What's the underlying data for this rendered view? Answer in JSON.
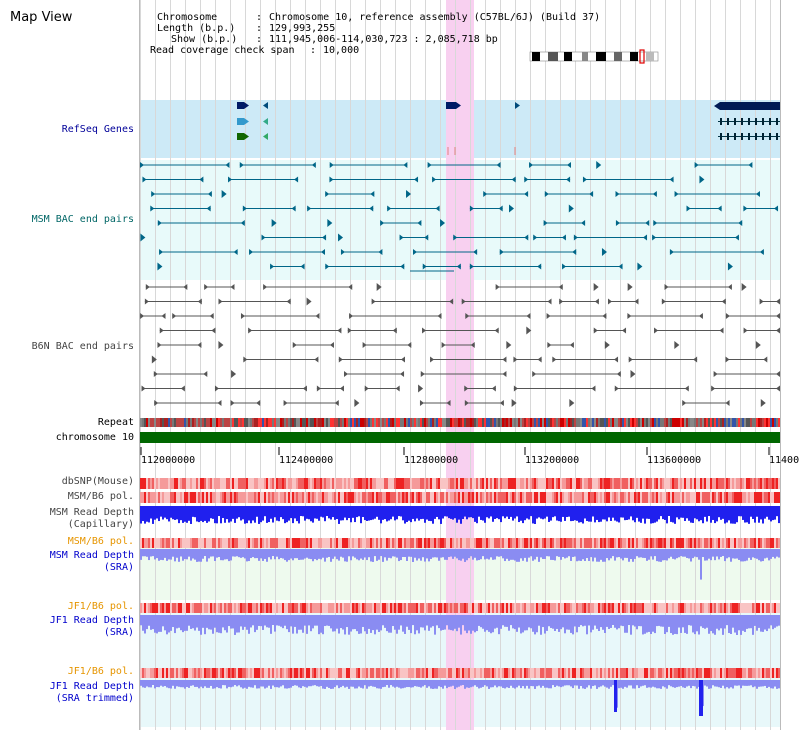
{
  "header": {
    "title": "Map View",
    "chromosome_key": "Chromosome",
    "chromosome_value": "Chromosome 10, reference assembly (C57BL/6J) (Build 37)",
    "length_key": "Length (b.p.)",
    "length_value": "129,993,255",
    "show_key": "Show (b.p.)",
    "show_value": "111,945,006-114,030,723 : 2,085,718 bp",
    "coverage_key": "Read coverage check span",
    "coverage_value": "10,000"
  },
  "axis": {
    "ticks": [
      "112000000",
      "112400000",
      "112800000",
      "113200000",
      "113600000",
      "11400"
    ]
  },
  "tracks": {
    "refseq": "RefSeq Genes",
    "msm_bac": "MSM BAC end pairs",
    "b6n_bac": "B6N BAC end pairs",
    "repeat": "Repeat",
    "chromosome": "chromosome 10",
    "dbsnp": "dbSNP(Mouse)",
    "msm_b6_pol": "MSM/B6 pol.",
    "msm_depth_cap_1": "MSM Read Depth",
    "msm_depth_cap_2": "(Capillary)",
    "msm_b6_pol_2": "MSM/B6 pol.",
    "msm_depth_sra_1": "MSM Read Depth",
    "msm_depth_sra_2": "(SRA)",
    "jf1_b6_pol": "JF1/B6 pol.",
    "jf1_depth_sra_1": "JF1 Read Depth",
    "jf1_depth_sra_2": "(SRA)",
    "jf1_b6_pol_2": "JF1/B6 pol.",
    "jf1_depth_trim_1": "JF1 Read Depth",
    "jf1_depth_trim_2": "(SRA trimmed)"
  },
  "colors": {
    "highlight": "#f8d0f0",
    "refseq_bg": "#cdeaf7",
    "track_bg": "#e8fafa",
    "msm_bac": "#006688",
    "b6n_bac": "#555555",
    "chromosome_bar": "#006600",
    "depth_dark": "#2222ee",
    "depth_light": "#8888f0",
    "pol_red": "#ee4444",
    "pol_pink": "#f8a8a8"
  }
}
